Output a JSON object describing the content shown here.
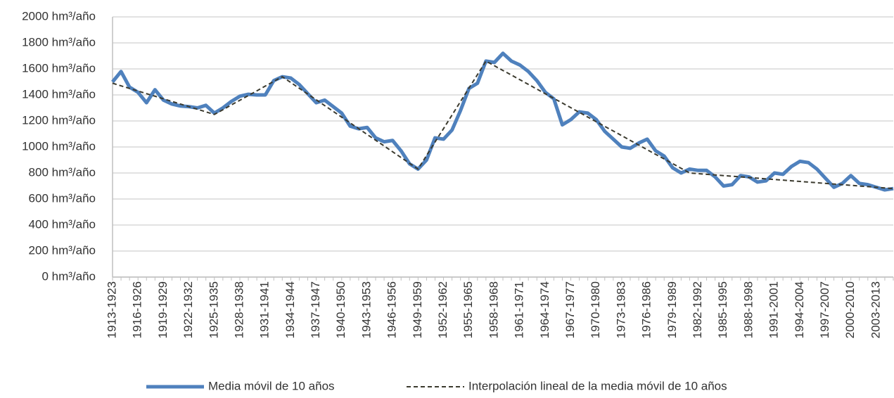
{
  "chart_data": {
    "type": "line",
    "categories": [
      "1913-1923",
      null,
      null,
      "1916-1926",
      null,
      null,
      "1919-1929",
      null,
      null,
      "1922-1932",
      null,
      null,
      "1925-1935",
      null,
      null,
      "1928-1938",
      null,
      null,
      "1931-1941",
      null,
      null,
      "1934-1944",
      null,
      null,
      "1937-1947",
      null,
      null,
      "1940-1950",
      null,
      null,
      "1943-1953",
      null,
      null,
      "1946-1956",
      null,
      null,
      "1949-1959",
      null,
      null,
      "1952-1962",
      null,
      null,
      "1955-1965",
      null,
      null,
      "1958-1968",
      null,
      null,
      "1961-1971",
      null,
      null,
      "1964-1974",
      null,
      null,
      "1967-1977",
      null,
      null,
      "1970-1980",
      null,
      null,
      "1973-1983",
      null,
      null,
      "1976-1986",
      null,
      null,
      "1979-1989",
      null,
      null,
      "1982-1992",
      null,
      null,
      "1985-1995",
      null,
      null,
      "1988-1998",
      null,
      null,
      "1991-2001",
      null,
      null,
      "1994-2004",
      null,
      null,
      "1997-2007",
      null,
      null,
      "2000-2010",
      null,
      null,
      "2003-2013",
      null,
      null
    ],
    "series": [
      {
        "name": "Media móvil de 10 años",
        "color": "#4f81bd",
        "dash": false,
        "values": [
          1500,
          1580,
          1460,
          1420,
          1340,
          1440,
          1360,
          1330,
          1315,
          1310,
          1300,
          1320,
          1260,
          1300,
          1350,
          1390,
          1405,
          1400,
          1400,
          1510,
          1540,
          1530,
          1480,
          1410,
          1340,
          1360,
          1310,
          1260,
          1160,
          1140,
          1150,
          1070,
          1040,
          1050,
          970,
          870,
          830,
          900,
          1070,
          1060,
          1130,
          1280,
          1450,
          1490,
          1660,
          1650,
          1720,
          1660,
          1630,
          1580,
          1510,
          1420,
          1370,
          1170,
          1210,
          1270,
          1260,
          1210,
          1120,
          1060,
          1000,
          990,
          1030,
          1060,
          970,
          930,
          840,
          800,
          830,
          820,
          820,
          770,
          700,
          710,
          780,
          770,
          730,
          740,
          800,
          790,
          850,
          890,
          880,
          830,
          760,
          690,
          720,
          780,
          720,
          710,
          690,
          670,
          680
        ]
      },
      {
        "name": "Interpolación lineal de la media móvil de 10 años",
        "color": "#3b3a2e",
        "dash": true,
        "values": [
          1490,
          1470,
          1450,
          1430,
          1410,
          1390,
          1370,
          1350,
          1330,
          1310,
          1290,
          1270,
          1250,
          1286,
          1323,
          1359,
          1395,
          1431,
          1468,
          1504,
          1540,
          1496,
          1451,
          1407,
          1363,
          1318,
          1274,
          1229,
          1185,
          1141,
          1096,
          1052,
          1008,
          963,
          919,
          874,
          830,
          934,
          1038,
          1141,
          1245,
          1349,
          1453,
          1556,
          1660,
          1624,
          1588,
          1553,
          1517,
          1481,
          1445,
          1409,
          1373,
          1338,
          1302,
          1266,
          1230,
          1194,
          1158,
          1123,
          1087,
          1051,
          1015,
          979,
          943,
          908,
          872,
          836,
          800,
          795,
          790,
          785,
          780,
          775,
          770,
          765,
          760,
          755,
          750,
          745,
          740,
          735,
          730,
          725,
          720,
          715,
          710,
          705,
          700,
          695,
          690,
          685,
          680
        ]
      }
    ],
    "ylim": [
      0,
      2000
    ],
    "yticks": [
      {
        "value": 0,
        "label": "0 hm³/año"
      },
      {
        "value": 200,
        "label": "200 hm³/año"
      },
      {
        "value": 400,
        "label": "400 hm³/año"
      },
      {
        "value": 600,
        "label": "600 hm³/año"
      },
      {
        "value": 800,
        "label": "800 hm³/año"
      },
      {
        "value": 1000,
        "label": "1000 hm³/año"
      },
      {
        "value": 1200,
        "label": "1200 hm³/año"
      },
      {
        "value": 1400,
        "label": "1400 hm³/año"
      },
      {
        "value": 1600,
        "label": "1600 hm³/año"
      },
      {
        "value": 1800,
        "label": "1800 hm³/año"
      },
      {
        "value": 2000,
        "label": "2000 hm³/año"
      }
    ],
    "grid": true,
    "legend": "bottom"
  }
}
